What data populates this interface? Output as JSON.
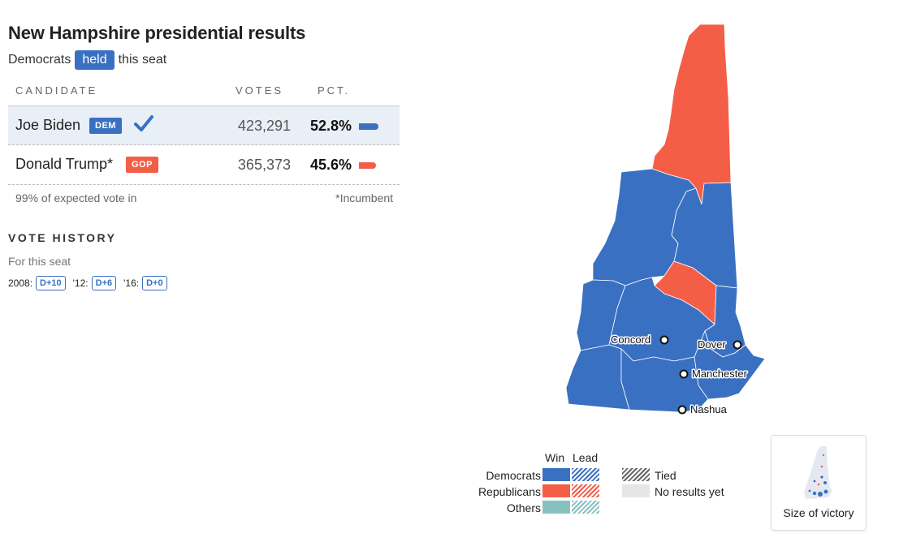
{
  "header": {
    "title": "New Hampshire presidential results",
    "sub_before": "Democrats",
    "sub_pill": "held",
    "sub_after": "this seat"
  },
  "table": {
    "col_candidate": "CANDIDATE",
    "col_votes": "VOTES",
    "col_pct": "PCT.",
    "rows": [
      {
        "name": "Joe Biden",
        "party": "DEM",
        "votes": "423,291",
        "pct": "52.8%",
        "pct_value": 52.8,
        "winner": true
      },
      {
        "name": "Donald Trump*",
        "party": "GOP",
        "votes": "365,373",
        "pct": "45.6%",
        "pct_value": 45.6,
        "winner": false
      }
    ],
    "footnote_left": "99% of expected vote in",
    "footnote_right": "*Incumbent"
  },
  "vote_history": {
    "title": "VOTE HISTORY",
    "subtitle": "For this seat",
    "items": [
      {
        "year": "2008:",
        "tag": "D+10"
      },
      {
        "year": "'12:",
        "tag": "D+6"
      },
      {
        "year": "'16:",
        "tag": "D+0"
      }
    ]
  },
  "map": {
    "cities": [
      {
        "name": "Concord"
      },
      {
        "name": "Dover"
      },
      {
        "name": "Manchester"
      },
      {
        "name": "Nashua"
      }
    ],
    "colors": {
      "dem": "#3a70c2",
      "rep": "#f45e46",
      "other": "#86c1c0",
      "no_results": "#e6e6e6"
    }
  },
  "legend": {
    "win": "Win",
    "lead": "Lead",
    "democrats": "Democrats",
    "republicans": "Republicans",
    "others": "Others",
    "tied": "Tied",
    "no_results": "No results yet"
  },
  "size_of_victory": {
    "label": "Size of victory"
  }
}
